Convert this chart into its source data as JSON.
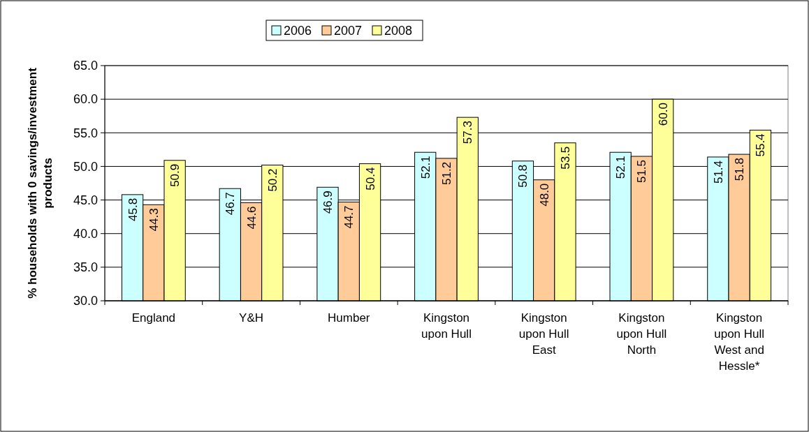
{
  "chart_data": {
    "type": "bar",
    "ylabel": "% households with 0 savings/investment products",
    "categories": [
      "England",
      "Y&H",
      "Humber",
      "Kingston upon Hull",
      "Kingston upon Hull East",
      "Kingston upon Hull North",
      "Kingston upon Hull West and Hessle*"
    ],
    "series": [
      {
        "name": "2006",
        "color": "#ccffff",
        "values": [
          45.8,
          46.7,
          46.9,
          52.1,
          50.8,
          52.1,
          51.4
        ],
        "value_labels": [
          "45.8",
          "46.7",
          "46.9",
          "52.1",
          "50.8",
          "52.1",
          "51.4"
        ]
      },
      {
        "name": "2007",
        "color": "#ffcc99",
        "values": [
          44.3,
          44.6,
          44.7,
          51.2,
          48.0,
          51.5,
          51.8
        ],
        "value_labels": [
          "44.3",
          "44.6",
          "44.7",
          "51.2",
          "48.0",
          "51.5",
          "51.8"
        ]
      },
      {
        "name": "2008",
        "color": "#ffff99",
        "values": [
          50.9,
          50.2,
          50.4,
          57.3,
          53.5,
          60.0,
          55.4
        ],
        "value_labels": [
          "50.9",
          "50.2",
          "50.4",
          "57.3",
          "53.5",
          "60.0",
          "55.4"
        ]
      }
    ],
    "ylim": [
      30,
      65
    ],
    "yticks": [
      {
        "value": 30,
        "label": "30.0"
      },
      {
        "value": 35,
        "label": "35.0"
      },
      {
        "value": 40,
        "label": "40.0"
      },
      {
        "value": 45,
        "label": "45.0"
      },
      {
        "value": 50,
        "label": "50.0"
      },
      {
        "value": 55,
        "label": "55.0"
      },
      {
        "value": 60,
        "label": "60.0"
      },
      {
        "value": 65,
        "label": "65.0"
      }
    ],
    "grid": "y",
    "legend": "top"
  }
}
